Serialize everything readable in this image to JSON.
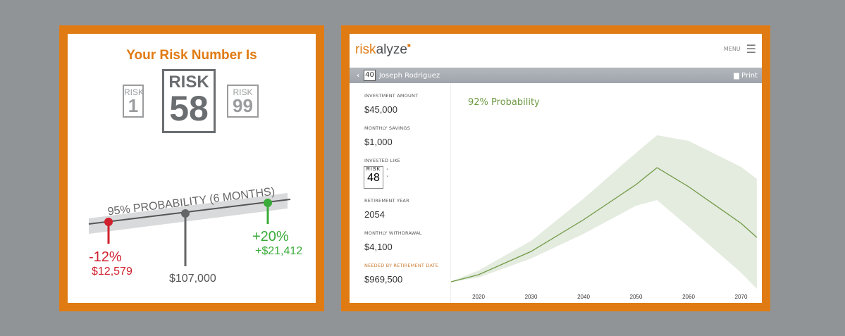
{
  "left": {
    "title": "Your Risk Number Is",
    "risk_word": "RISK",
    "low": "1",
    "main": "58",
    "high": "99",
    "probability": "95% PROBABILITY (6 MONTHS)",
    "loss_pct": "-12%",
    "loss_amt": "$12,579",
    "mid_amt": "$107,000",
    "gain_pct": "+20%",
    "gain_amt": "+$21,412",
    "colors": {
      "loss": "#d0202e",
      "gain": "#3aab3a",
      "accent": "#e07b14"
    }
  },
  "right": {
    "logo_a": "risk",
    "logo_b": "alyze",
    "menu": "MENU",
    "client_risk": "40",
    "client_name": "Joseph Rodriguez",
    "print": "Print",
    "fields": [
      {
        "label": "INVESTMENT AMOUNT",
        "value": "$45,000"
      },
      {
        "label": "MONTHLY SAVINGS",
        "value": "$1,000"
      },
      {
        "label": "INVESTED LIKE",
        "value": "48"
      },
      {
        "label": "RETIREMENT YEAR",
        "value": "2054"
      },
      {
        "label": "MONTHLY WITHDRAWAL",
        "value": "$4,100"
      },
      {
        "label": "NEEDED BY RETIREMENT DATE",
        "value": "$969,500"
      }
    ],
    "chart_title": "92% Probability"
  },
  "chart_data": {
    "type": "area",
    "title": "92% Probability",
    "xticks": [
      "2020",
      "2030",
      "2040",
      "2050",
      "2060",
      "2070"
    ],
    "xlim": [
      2014.3,
      2073
    ],
    "x": [
      2014.3,
      2020,
      2030,
      2040,
      2050,
      2054,
      2060,
      2070,
      2073
    ],
    "series": [
      {
        "role": "median",
        "values": [
          11,
          22,
          55,
          100,
          150,
          174,
          147,
          95,
          75
        ]
      },
      {
        "role": "upper",
        "values": [
          11,
          28,
          70,
          130,
          195,
          220,
          212,
          175,
          158
        ]
      },
      {
        "role": "lower",
        "values": [
          11,
          18,
          45,
          80,
          120,
          128,
          90,
          25,
          2
        ]
      }
    ],
    "colors": {
      "line": "#6f9a45",
      "band": "#e4ebdf"
    }
  }
}
